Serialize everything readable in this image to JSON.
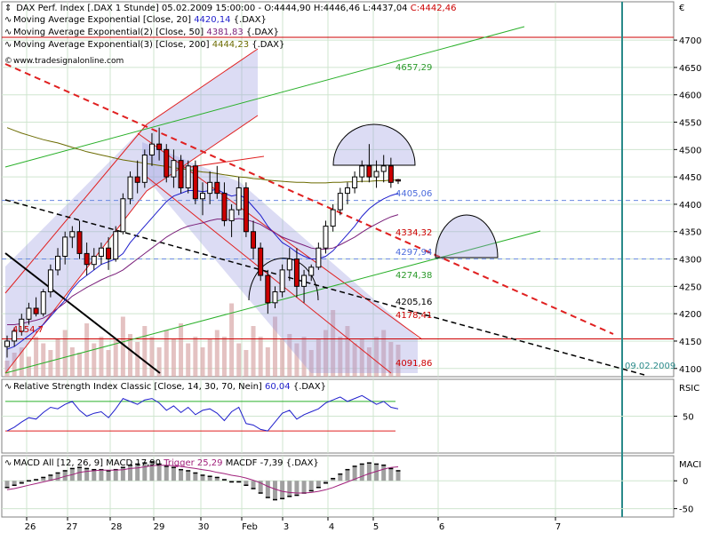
{
  "panel_main": {
    "header": {
      "title": "DAX Perf. Index [.DAX 1 Stunde] 05.02.2009 15:00:00",
      "ohlc": "- O:4444,90 H:4446,46 L:4437,04",
      "close": "C:4442,46",
      "close_color": "#cc0000"
    },
    "indicators": [
      {
        "label": "Moving Average Exponential [Close, 20]",
        "value": "4420,14",
        "suffix": "{.DAX}",
        "color": "#1f1fcc"
      },
      {
        "label": "Moving Average Exponential(2) [Close, 50]",
        "value": "4381,83",
        "suffix": "{.DAX}",
        "color": "#7a1f7a"
      },
      {
        "label": "Moving Average Exponential(3) [Close, 200]",
        "value": "4444,23",
        "suffix": "{.DAX}",
        "color": "#6b6b00"
      }
    ],
    "source": "www.tradesignalonline.com",
    "currency": "€"
  },
  "panel_rsi": {
    "title": "Relative Strength Index Classic [Close, 14, 30, 70, Nein]",
    "value": "60,04",
    "suffix": "{.DAX}",
    "axis_label": "RSIC",
    "tick": "50"
  },
  "panel_macd": {
    "title": "MACD All [12, 26, 9] MACD 17,90",
    "trigger_text": "Trigger 25,29",
    "macdf_text": "MACDF -7,39",
    "suffix": "{.DAX}",
    "axis_label": "MACI",
    "ticks": [
      "0",
      "-50"
    ]
  },
  "annotations": [
    {
      "text": "4657,29",
      "color": "#2a9a2a",
      "price": 4657
    },
    {
      "text": "4405,06",
      "color": "#4a6adc",
      "price": 4405
    },
    {
      "text": "4334,32",
      "color": "#cc0000",
      "price": 4334
    },
    {
      "text": "4297,94",
      "color": "#4a6adc",
      "price": 4297
    },
    {
      "text": "4274,38",
      "color": "#2a9a2a",
      "price": 4274
    },
    {
      "text": "4205,16",
      "color": "#000000",
      "price": 4205
    },
    {
      "text": "4178,41",
      "color": "#cc0000",
      "price": 4178
    },
    {
      "text": "4091,86",
      "color": "#cc0000",
      "price": 4091
    },
    {
      "text": "4154,7",
      "color": "#cc0000",
      "price": 4154
    },
    {
      "text": "09.02.2009",
      "color": "#2a8a8a",
      "price": 4096
    }
  ],
  "chart_data": [
    {
      "type": "candlestick",
      "title": "DAX Perf. Index [.DAX 1 Stunde] 05.02.2009 15:00:00",
      "x_labels": [
        "26",
        "27",
        "28",
        "29",
        "30",
        "Feb",
        "3",
        "4",
        "5",
        "6",
        "7"
      ],
      "y_ticks": [
        4100,
        4150,
        4200,
        4250,
        4300,
        4350,
        4400,
        4450,
        4500,
        4550,
        4600,
        4650,
        4700
      ],
      "ylim": [
        4085,
        4770
      ],
      "grid": true,
      "candles": [
        [
          4140,
          4160,
          4120,
          4150
        ],
        [
          4150,
          4175,
          4140,
          4168
        ],
        [
          4168,
          4200,
          4160,
          4190
        ],
        [
          4190,
          4220,
          4180,
          4210
        ],
        [
          4210,
          4230,
          4195,
          4200
        ],
        [
          4200,
          4245,
          4195,
          4240
        ],
        [
          4240,
          4290,
          4230,
          4280
        ],
        [
          4280,
          4320,
          4270,
          4305
        ],
        [
          4305,
          4350,
          4290,
          4340
        ],
        [
          4340,
          4360,
          4320,
          4350
        ],
        [
          4350,
          4370,
          4300,
          4310
        ],
        [
          4310,
          4330,
          4270,
          4290
        ],
        [
          4290,
          4320,
          4280,
          4305
        ],
        [
          4305,
          4330,
          4290,
          4320
        ],
        [
          4320,
          4340,
          4280,
          4300
        ],
        [
          4300,
          4360,
          4295,
          4350
        ],
        [
          4350,
          4420,
          4345,
          4410
        ],
        [
          4410,
          4460,
          4400,
          4450
        ],
        [
          4450,
          4480,
          4420,
          4440
        ],
        [
          4440,
          4500,
          4430,
          4490
        ],
        [
          4490,
          4530,
          4470,
          4510
        ],
        [
          4510,
          4540,
          4480,
          4500
        ],
        [
          4500,
          4510,
          4440,
          4450
        ],
        [
          4450,
          4500,
          4430,
          4480
        ],
        [
          4480,
          4490,
          4420,
          4430
        ],
        [
          4430,
          4480,
          4420,
          4470
        ],
        [
          4470,
          4480,
          4400,
          4410
        ],
        [
          4410,
          4440,
          4380,
          4420
        ],
        [
          4420,
          4460,
          4400,
          4440
        ],
        [
          4440,
          4470,
          4410,
          4420
        ],
        [
          4420,
          4440,
          4360,
          4370
        ],
        [
          4370,
          4400,
          4340,
          4390
        ],
        [
          4390,
          4450,
          4380,
          4430
        ],
        [
          4430,
          4440,
          4340,
          4350
        ],
        [
          4350,
          4370,
          4300,
          4320
        ],
        [
          4320,
          4330,
          4260,
          4270
        ],
        [
          4270,
          4280,
          4200,
          4220
        ],
        [
          4220,
          4250,
          4210,
          4240
        ],
        [
          4240,
          4290,
          4230,
          4280
        ],
        [
          4280,
          4320,
          4260,
          4300
        ],
        [
          4300,
          4320,
          4230,
          4250
        ],
        [
          4250,
          4280,
          4220,
          4270
        ],
        [
          4270,
          4290,
          4260,
          4285
        ],
        [
          4285,
          4330,
          4280,
          4320
        ],
        [
          4320,
          4370,
          4310,
          4360
        ],
        [
          4360,
          4400,
          4350,
          4390
        ],
        [
          4390,
          4430,
          4380,
          4420
        ],
        [
          4420,
          4440,
          4400,
          4430
        ],
        [
          4430,
          4460,
          4420,
          4450
        ],
        [
          4450,
          4480,
          4440,
          4470
        ],
        [
          4470,
          4510,
          4440,
          4450
        ],
        [
          4450,
          4480,
          4430,
          4460
        ],
        [
          4460,
          4490,
          4440,
          4470
        ],
        [
          4470,
          4485,
          4430,
          4440
        ],
        [
          4444.9,
          4446.46,
          4437.04,
          4442.46
        ]
      ],
      "volumes": [
        12,
        18,
        22,
        15,
        30,
        25,
        20,
        28,
        35,
        22,
        18,
        40,
        25,
        30,
        20,
        28,
        45,
        32,
        26,
        38,
        30,
        22,
        35,
        28,
        40,
        25,
        30,
        22,
        28,
        35,
        30,
        55,
        25,
        20,
        38,
        30,
        22,
        45,
        28,
        32,
        25,
        30,
        20,
        28,
        35,
        50,
        30,
        38,
        25,
        28,
        22,
        30,
        35,
        26,
        24
      ],
      "series": [
        {
          "name": "Moving Average Exponential [Close, 20]",
          "color": "#1f1fcc",
          "values": [
            4135,
            4140,
            4150,
            4160,
            4170,
            4180,
            4195,
            4210,
            4225,
            4245,
            4260,
            4270,
            4280,
            4290,
            4295,
            4300,
            4310,
            4330,
            4345,
            4360,
            4375,
            4390,
            4405,
            4415,
            4420,
            4425,
            4425,
            4423,
            4425,
            4427,
            4420,
            4415,
            4418,
            4410,
            4395,
            4380,
            4360,
            4345,
            4330,
            4322,
            4312,
            4305,
            4300,
            4300,
            4305,
            4315,
            4330,
            4345,
            4360,
            4378,
            4392,
            4402,
            4410,
            4416,
            4420
          ]
        },
        {
          "name": "Moving Average Exponential(2) [Close, 50]",
          "color": "#7a1f7a",
          "values": [
            4180,
            4180,
            4182,
            4185,
            4188,
            4192,
            4200,
            4210,
            4220,
            4232,
            4240,
            4248,
            4255,
            4262,
            4268,
            4273,
            4280,
            4290,
            4300,
            4310,
            4320,
            4330,
            4340,
            4348,
            4355,
            4360,
            4363,
            4366,
            4370,
            4373,
            4373,
            4372,
            4374,
            4372,
            4368,
            4363,
            4355,
            4348,
            4340,
            4335,
            4330,
            4325,
            4320,
            4318,
            4318,
            4320,
            4326,
            4333,
            4340,
            4349,
            4357,
            4364,
            4371,
            4377,
            4381
          ]
        },
        {
          "name": "Moving Average Exponential(3) [Close, 200]",
          "color": "#6b6b00",
          "values": [
            4540,
            4535,
            4530,
            4526,
            4522,
            4518,
            4515,
            4512,
            4508,
            4504,
            4500,
            4496,
            4493,
            4490,
            4487,
            4484,
            4481,
            4479,
            4477,
            4475,
            4473,
            4471,
            4469,
            4467,
            4465,
            4463,
            4461,
            4459,
            4458,
            4456,
            4454,
            4452,
            4450,
            4449,
            4447,
            4446,
            4444,
            4443,
            4442,
            4441,
            4440,
            4440,
            4439,
            4439,
            4439,
            4440,
            4440,
            4441,
            4441,
            4442,
            4442,
            4443,
            4443,
            4444,
            4444
          ]
        }
      ]
    },
    {
      "type": "line",
      "title": "Relative Strength Index Classic [Close, 14, 30, 70, Nein]",
      "y_ticks": [
        50
      ],
      "ylim": [
        0,
        100
      ],
      "levels": [
        30,
        70
      ],
      "series": [
        {
          "name": "Relative Strength Index Classic [Close, 14, 30, 70, Nein]",
          "color": "#1f1fcc",
          "values": [
            30,
            35,
            42,
            48,
            46,
            55,
            62,
            60,
            66,
            70,
            58,
            50,
            54,
            56,
            48,
            60,
            74,
            70,
            66,
            72,
            74,
            68,
            58,
            64,
            55,
            62,
            52,
            58,
            60,
            54,
            44,
            56,
            62,
            40,
            38,
            32,
            30,
            42,
            54,
            58,
            46,
            52,
            56,
            60,
            68,
            72,
            76,
            70,
            74,
            78,
            72,
            66,
            70,
            62,
            60
          ]
        }
      ]
    },
    {
      "type": "bar",
      "title": "MACD All [12, 26, 9]",
      "y_ticks": [
        0,
        -50
      ],
      "ylim": [
        -65,
        45
      ],
      "series": [
        {
          "name": "MACD",
          "color": "#000000",
          "values": [
            -12,
            -8,
            -4,
            0,
            2,
            6,
            10,
            14,
            18,
            22,
            24,
            22,
            20,
            20,
            18,
            20,
            24,
            28,
            30,
            32,
            34,
            30,
            26,
            24,
            20,
            18,
            14,
            10,
            8,
            6,
            2,
            -2,
            -2,
            -8,
            -14,
            -22,
            -30,
            -34,
            -32,
            -28,
            -26,
            -22,
            -18,
            -12,
            -4,
            4,
            12,
            20,
            26,
            30,
            32,
            30,
            28,
            22,
            18
          ]
        },
        {
          "name": "Trigger",
          "color": "#a01f7a",
          "values": [
            -16,
            -14,
            -11,
            -8,
            -5,
            -2,
            1,
            4,
            8,
            11,
            15,
            17,
            18,
            19,
            19,
            19,
            20,
            22,
            23,
            25,
            27,
            28,
            28,
            27,
            26,
            24,
            22,
            20,
            18,
            15,
            13,
            10,
            8,
            5,
            1,
            -4,
            -10,
            -15,
            -19,
            -21,
            -22,
            -22,
            -21,
            -19,
            -16,
            -12,
            -7,
            -2,
            3,
            8,
            13,
            17,
            21,
            24,
            25
          ]
        }
      ]
    }
  ]
}
